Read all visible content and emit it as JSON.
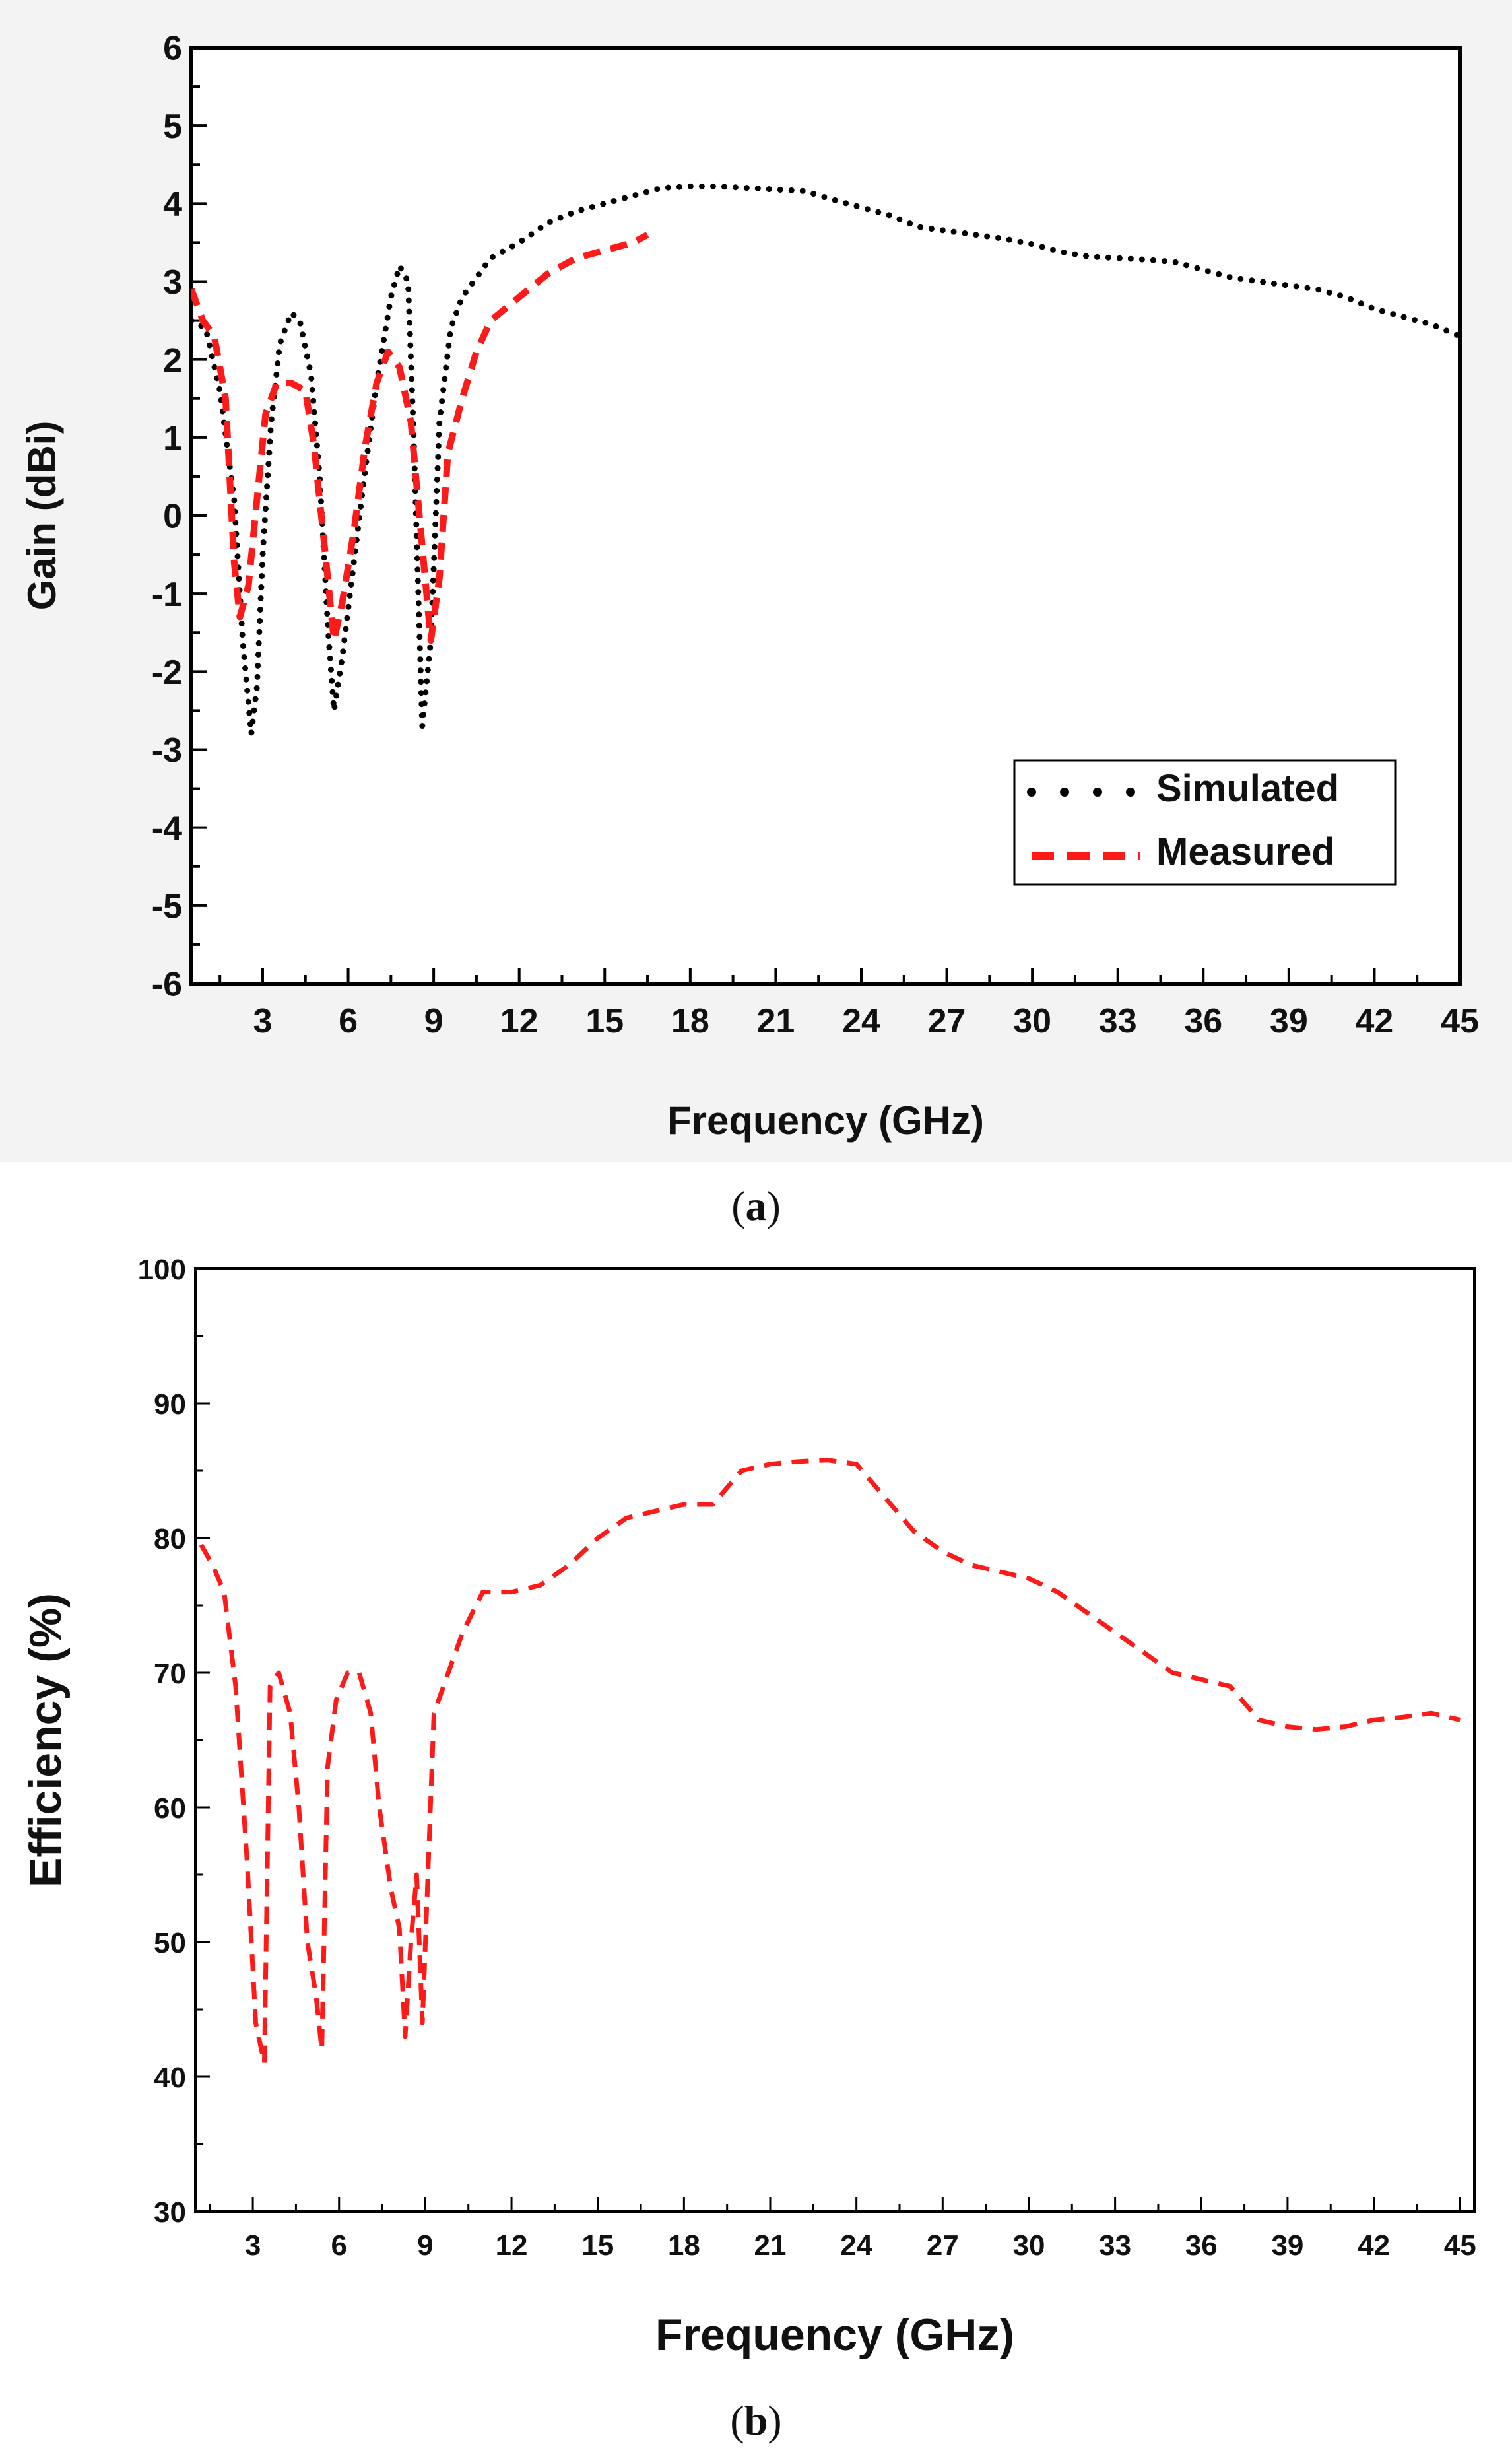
{
  "captions": {
    "a": {
      "open": "(",
      "letter": "a",
      "close": ")"
    },
    "b": {
      "open": "(",
      "letter": "b",
      "close": ")"
    }
  },
  "colors": {
    "simulated": "#000000",
    "measured": "#ff1a1a",
    "efficiency": "#ff1a1a"
  },
  "chart_data": [
    {
      "type": "line",
      "title": "",
      "xlabel": "Frequency (GHz)",
      "ylabel": "Gain (dBi)",
      "xlim": [
        0.5,
        45
      ],
      "ylim": [
        -6,
        6
      ],
      "xticks": [
        3,
        6,
        9,
        12,
        15,
        18,
        21,
        24,
        27,
        30,
        33,
        36,
        39,
        42,
        45
      ],
      "xtick_labels": [
        "3",
        "6",
        "9",
        "12",
        "15",
        "18",
        "21",
        "24",
        "27",
        "30",
        "33",
        "36",
        "39",
        "42",
        "45"
      ],
      "yticks": [
        -6,
        -5,
        -4,
        -3,
        -2,
        -1,
        0,
        1,
        2,
        3,
        4,
        5,
        6
      ],
      "ytick_labels": [
        "-6",
        "-5",
        "-4",
        "-3",
        "-2",
        "-1",
        "0",
        "1",
        "2",
        "3",
        "4",
        "5",
        "6"
      ],
      "legend": {
        "position": "lower-right",
        "entries": [
          "Simulated",
          "Measured"
        ]
      },
      "series": [
        {
          "name": "Simulated",
          "style": "dotted",
          "x": [
            0.5,
            1.0,
            1.5,
            2.0,
            2.3,
            2.6,
            2.8,
            3.0,
            3.3,
            3.6,
            4.0,
            4.3,
            4.7,
            5.0,
            5.3,
            5.5,
            5.8,
            6.2,
            6.6,
            7.0,
            7.5,
            7.8,
            8.1,
            8.3,
            8.6,
            8.9,
            9.2,
            9.6,
            10,
            11,
            12,
            13,
            14,
            15,
            16,
            17,
            18,
            19,
            20,
            21,
            22,
            23,
            24,
            25,
            26,
            27,
            28,
            29,
            30,
            31,
            32,
            33,
            34,
            35,
            36,
            37,
            38,
            39,
            40,
            41,
            42,
            43,
            44,
            45
          ],
          "y": [
            2.5,
            2.4,
            1.6,
            0.2,
            -1.6,
            -2.8,
            -2.2,
            -0.5,
            1.2,
            2.2,
            2.6,
            2.5,
            1.8,
            0.5,
            -1.5,
            -2.5,
            -1.8,
            -0.6,
            0.6,
            1.7,
            2.8,
            3.2,
            3.0,
            1.0,
            -2.7,
            -1.6,
            1.2,
            2.4,
            2.8,
            3.3,
            3.5,
            3.75,
            3.9,
            4.0,
            4.1,
            4.2,
            4.22,
            4.22,
            4.2,
            4.18,
            4.16,
            4.05,
            3.95,
            3.85,
            3.7,
            3.65,
            3.6,
            3.55,
            3.48,
            3.38,
            3.32,
            3.3,
            3.28,
            3.25,
            3.15,
            3.05,
            3.0,
            2.95,
            2.9,
            2.8,
            2.65,
            2.55,
            2.45,
            2.3
          ]
        },
        {
          "name": "Measured",
          "style": "dashed",
          "x": [
            0.5,
            0.9,
            1.3,
            1.7,
            2.0,
            2.2,
            2.5,
            2.8,
            3.1,
            3.5,
            4.0,
            4.5,
            4.8,
            5.2,
            5.5,
            5.8,
            6.2,
            6.6,
            7.0,
            7.4,
            7.8,
            8.2,
            8.6,
            8.9,
            9.2,
            9.5,
            10,
            10.5,
            11,
            12,
            13,
            14,
            15,
            16,
            16.5
          ],
          "y": [
            2.9,
            2.5,
            2.3,
            1.5,
            -0.6,
            -1.3,
            -0.9,
            0.2,
            1.3,
            1.7,
            1.7,
            1.6,
            0.9,
            -0.5,
            -1.6,
            -1.1,
            -0.2,
            0.9,
            1.7,
            2.1,
            1.9,
            1.2,
            -0.4,
            -1.6,
            -0.8,
            0.8,
            1.5,
            2.1,
            2.5,
            2.8,
            3.1,
            3.3,
            3.4,
            3.5,
            3.6
          ]
        }
      ]
    },
    {
      "type": "line",
      "title": "",
      "xlabel": "Frequency (GHz)",
      "ylabel": "Efficiency (%)",
      "xlim": [
        1,
        45.5
      ],
      "ylim": [
        30,
        100
      ],
      "xticks": [
        3,
        6,
        9,
        12,
        15,
        18,
        21,
        24,
        27,
        30,
        33,
        36,
        39,
        42,
        45
      ],
      "xtick_labels": [
        "3",
        "6",
        "9",
        "12",
        "15",
        "18",
        "21",
        "24",
        "27",
        "30",
        "33",
        "36",
        "39",
        "42",
        "45"
      ],
      "yticks": [
        30,
        40,
        50,
        60,
        70,
        80,
        90,
        100
      ],
      "ytick_labels": [
        "30",
        "40",
        "50",
        "60",
        "70",
        "80",
        "90",
        "100"
      ],
      "legend": null,
      "series": [
        {
          "name": "Efficiency",
          "style": "dashed",
          "x": [
            1.2,
            1.6,
            2.0,
            2.4,
            2.8,
            3.1,
            3.4,
            3.6,
            3.9,
            4.3,
            4.6,
            4.9,
            5.2,
            5.4,
            5.6,
            5.9,
            6.3,
            6.7,
            7.1,
            7.4,
            7.8,
            8.1,
            8.3,
            8.5,
            8.7,
            8.9,
            9.3,
            9.8,
            10.3,
            11,
            12,
            13,
            14,
            15,
            16,
            17,
            18,
            19,
            20,
            21,
            22,
            23,
            24,
            25,
            26,
            27,
            28,
            29,
            30,
            31,
            32,
            33,
            34,
            35,
            36,
            37,
            38,
            39,
            40,
            41,
            42,
            43,
            44,
            45
          ],
          "y": [
            79.5,
            78,
            76,
            69,
            56,
            44,
            41,
            69,
            70,
            67,
            60,
            50,
            46,
            42,
            63,
            68,
            70,
            70,
            67,
            60,
            54,
            51,
            43,
            50,
            55,
            44,
            67,
            70,
            73,
            76,
            76,
            76.5,
            78,
            80,
            81.5,
            82,
            82.5,
            82.5,
            85,
            85.5,
            85.7,
            85.8,
            85.5,
            83,
            80.5,
            79,
            78,
            77.5,
            77,
            76,
            74.5,
            73,
            71.5,
            70,
            69.5,
            69,
            66.5,
            66,
            65.8,
            66,
            66.5,
            66.7,
            67,
            66.5
          ]
        }
      ]
    }
  ]
}
